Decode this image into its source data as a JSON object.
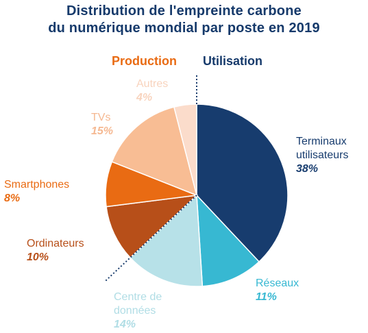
{
  "chart_data": {
    "type": "pie",
    "title_line1": "Distribution de l'empreinte carbone",
    "title_line2": "du numérique mondial par poste en 2019",
    "groups": {
      "production": {
        "label": "Production",
        "color": "#e96b13"
      },
      "utilisation": {
        "label": "Utilisation",
        "color": "#163a6b"
      }
    },
    "slices": [
      {
        "name": "Terminaux utilisateurs",
        "name_lines": [
          "Terminaux",
          "utilisateurs"
        ],
        "value": 38,
        "pct_label": "38%",
        "color": "#173c6e",
        "label_color": "#173c6e",
        "group": "utilisation"
      },
      {
        "name": "Réseaux",
        "name_lines": [
          "Réseaux"
        ],
        "value": 11,
        "pct_label": "11%",
        "color": "#37b8d2",
        "label_color": "#37b8d2",
        "group": "utilisation"
      },
      {
        "name": "Centre de données",
        "name_lines": [
          "Centre de",
          "données"
        ],
        "value": 14,
        "pct_label": "14%",
        "color": "#b7e1e8",
        "label_color": "#b0dde5",
        "group": "utilisation"
      },
      {
        "name": "Ordinateurs",
        "name_lines": [
          "Ordinateurs"
        ],
        "value": 10,
        "pct_label": "10%",
        "color": "#b74f19",
        "label_color": "#b74f19",
        "group": "production"
      },
      {
        "name": "Smartphones",
        "name_lines": [
          "Smartphones"
        ],
        "value": 8,
        "pct_label": "8%",
        "color": "#e96b13",
        "label_color": "#e96b13",
        "group": "production"
      },
      {
        "name": "TVs",
        "name_lines": [
          "TVs"
        ],
        "value": 15,
        "pct_label": "15%",
        "color": "#f8bd94",
        "label_color": "#f5b891",
        "group": "production"
      },
      {
        "name": "Autres",
        "name_lines": [
          "Autres"
        ],
        "value": 4,
        "pct_label": "4%",
        "color": "#fbdccb",
        "label_color": "#f8d3bd",
        "group": "production"
      }
    ]
  }
}
